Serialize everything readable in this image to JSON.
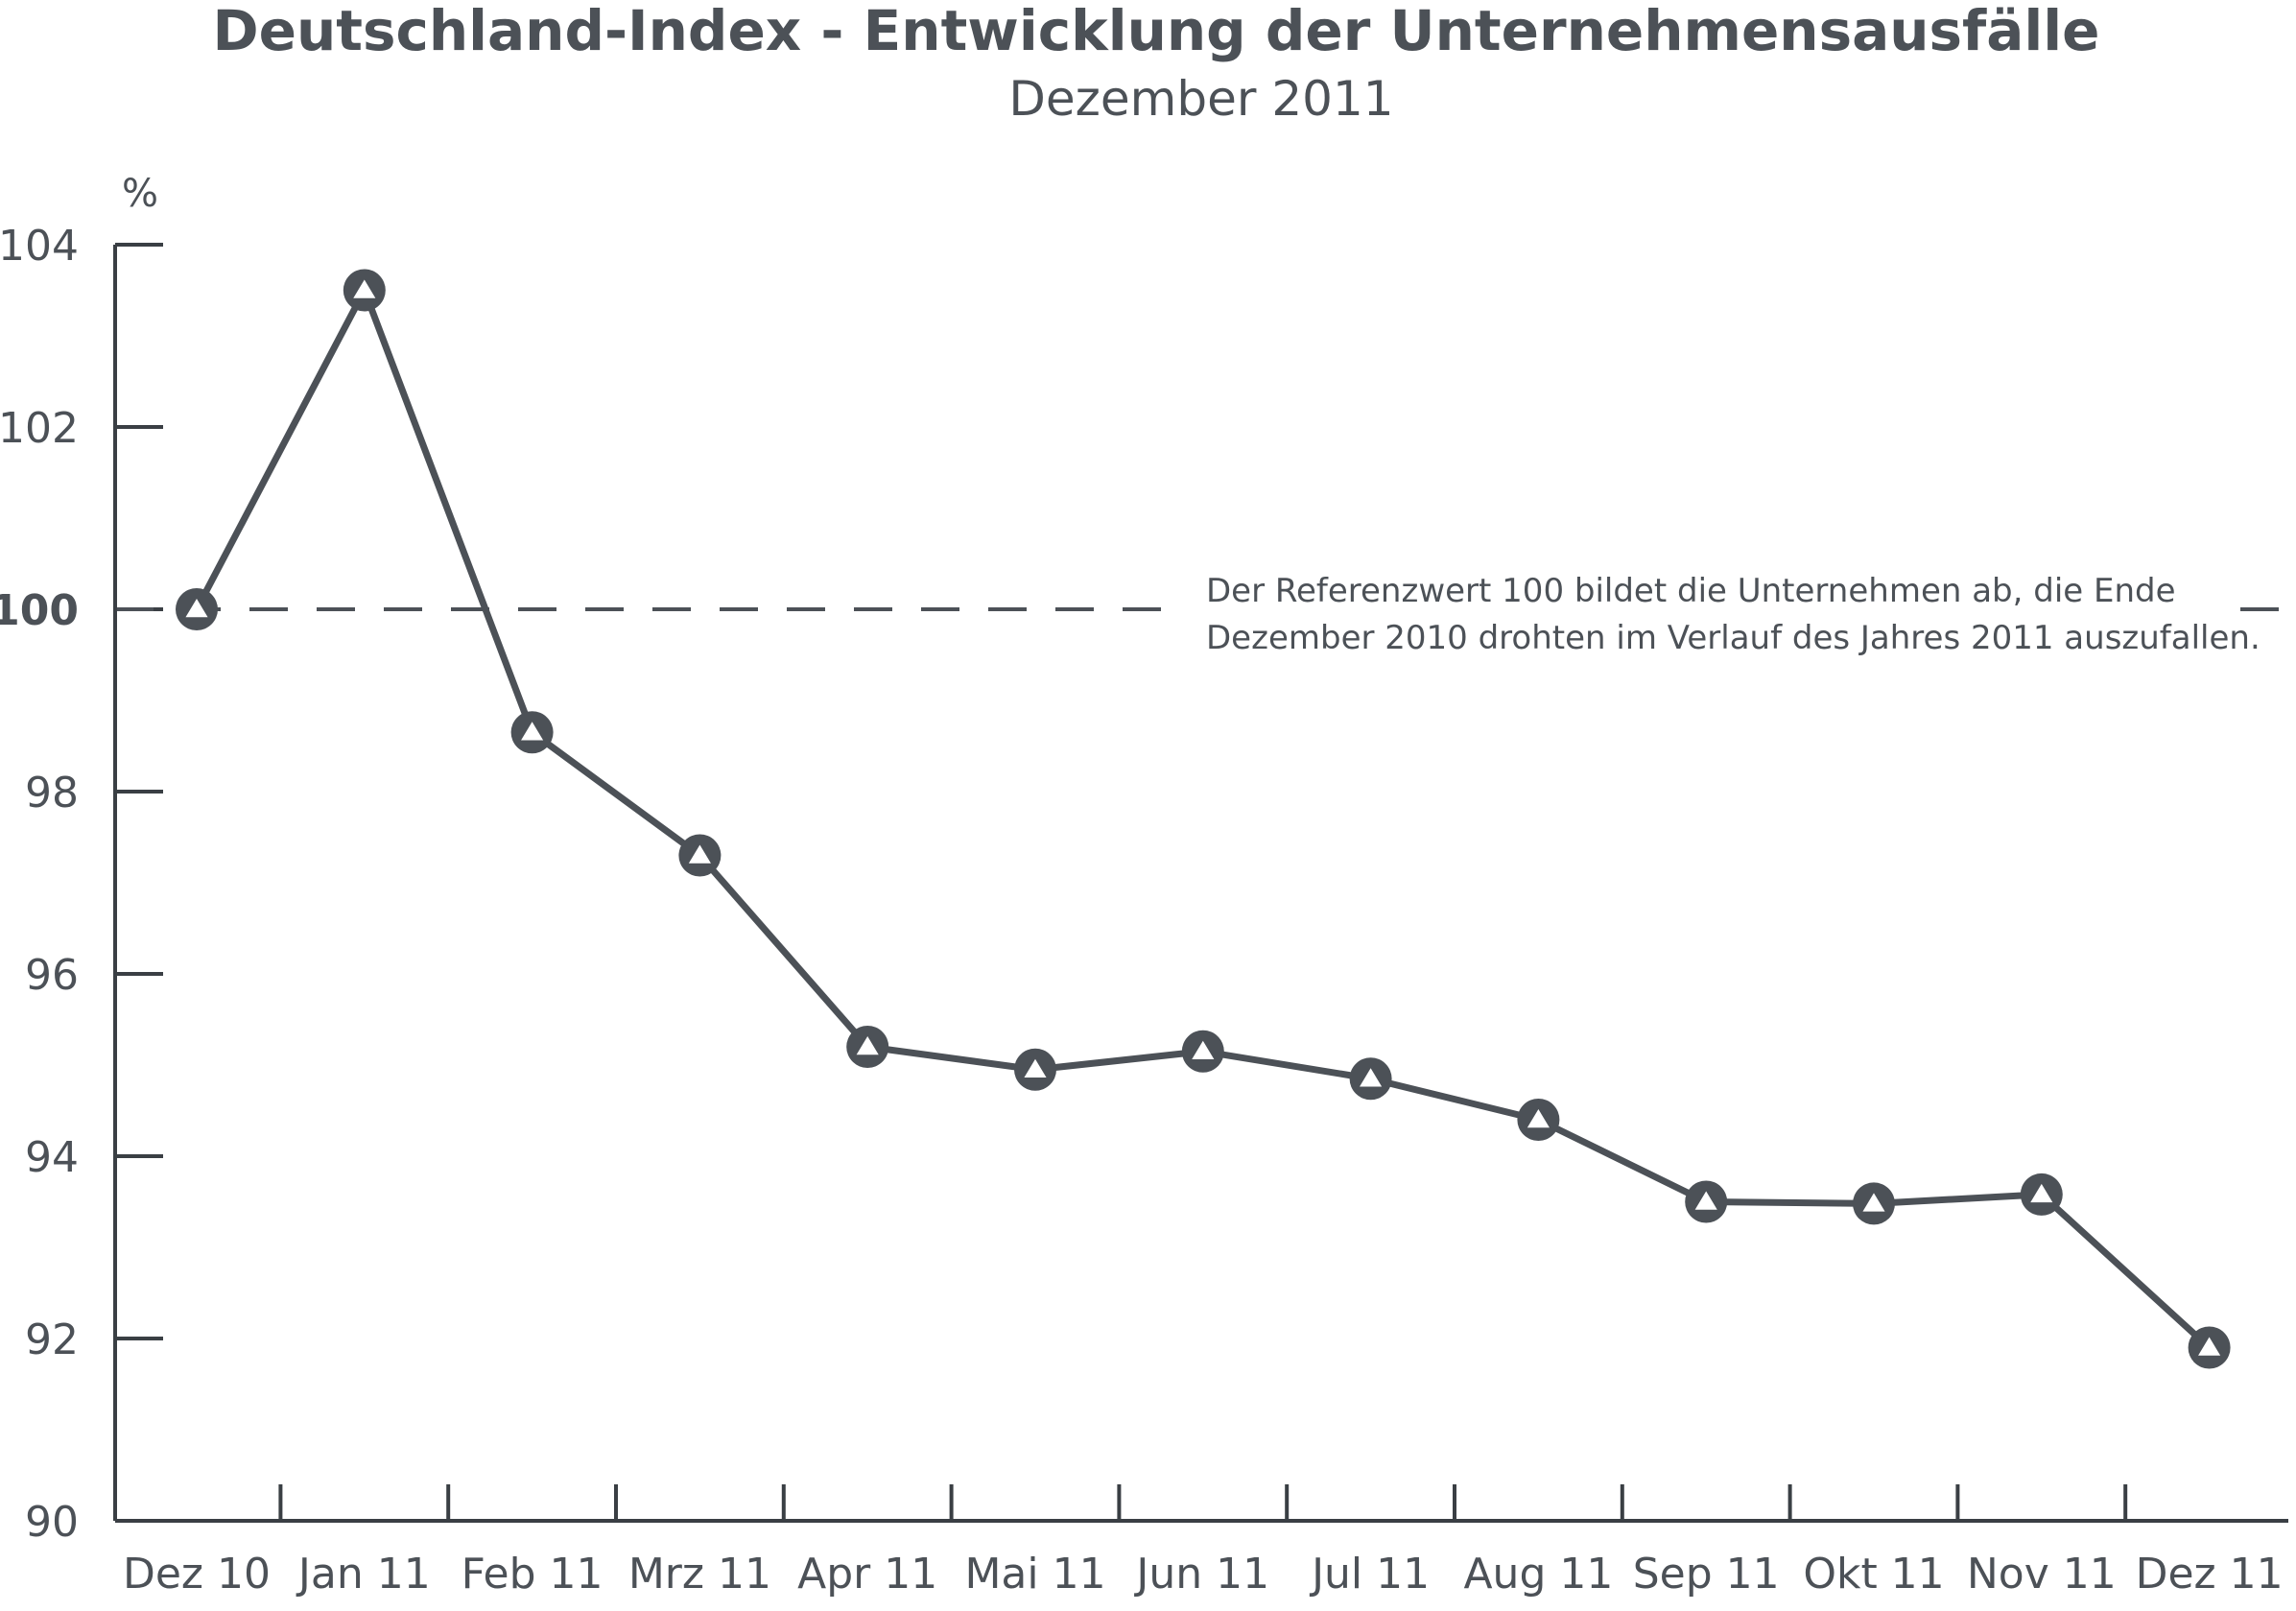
{
  "chart_data": {
    "type": "line",
    "title": "Deutschland-Index - Entwicklung der Unternehmensausfälle",
    "subtitle": "Dezember 2011",
    "ylabel": "%",
    "xlabel": "",
    "ylim": [
      90,
      104
    ],
    "yticks": [
      90,
      92,
      94,
      96,
      98,
      100,
      102,
      104
    ],
    "categories": [
      "Dez 10",
      "Jan 11",
      "Feb 11",
      "Mrz 11",
      "Apr 11",
      "Mai 11",
      "Jun 11",
      "Jul 11",
      "Aug 11",
      "Sep 11",
      "Okt 11",
      "Nov 11",
      "Dez 11"
    ],
    "values": [
      100.0,
      103.5,
      98.65,
      97.3,
      95.2,
      94.95,
      95.15,
      94.85,
      94.4,
      93.5,
      93.48,
      93.58,
      91.9
    ],
    "reference": {
      "value": 100,
      "style": "dashed",
      "label_lines": [
        "Der Referenzwert 100 bildet die Unternehmen ab, die Ende",
        "Dezember 2010 drohten im Verlauf des Jahres 2011 auszufallen."
      ]
    },
    "grid": false,
    "legend": "none",
    "colors": {
      "line": "#4c5157",
      "axis": "#3a3f44",
      "marker_fill": "#4c5157",
      "marker_symbol": "#ffffff"
    }
  }
}
